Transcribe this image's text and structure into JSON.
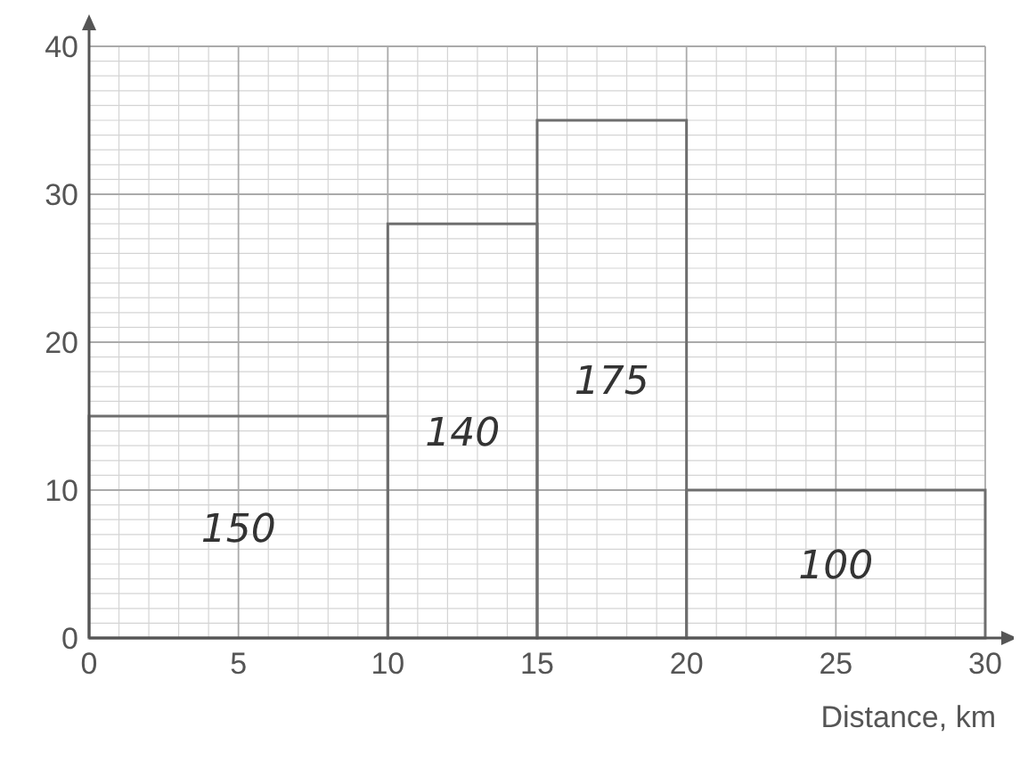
{
  "chart_data": {
    "type": "histogram",
    "xlabel": "Distance, km",
    "bins": [
      0,
      10,
      15,
      20,
      30
    ],
    "values": [
      15,
      28,
      35,
      10
    ],
    "color": "#6e6e6e",
    "xlim": [
      0,
      30
    ],
    "ylim": [
      0,
      40
    ],
    "xticks": [
      0,
      5,
      10,
      15,
      20,
      25,
      30
    ],
    "yticks": [
      0,
      10,
      20,
      30,
      40
    ],
    "grid": true,
    "annotations": [
      "150",
      "140",
      "175",
      "100"
    ]
  }
}
